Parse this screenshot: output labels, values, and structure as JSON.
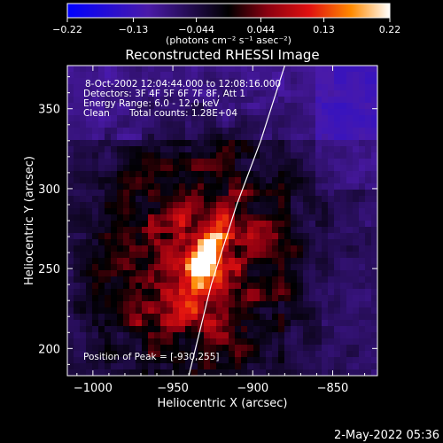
{
  "chart_data": {
    "type": "heatmap",
    "title": "Reconstructed RHESSI Image",
    "xlabel": "Heliocentric X (arcsec)",
    "ylabel": "Heliocentric Y (arcsec)",
    "xlim": [
      -1016,
      -822
    ],
    "ylim": [
      183,
      377
    ],
    "xticks": [
      -1000,
      -950,
      -900,
      -850
    ],
    "yticks": [
      200,
      250,
      300,
      350
    ],
    "xtick_labels": [
      "−1000",
      "−950",
      "−900",
      "−850"
    ],
    "ytick_labels": [
      "200",
      "250",
      "300",
      "350"
    ],
    "colorbar": {
      "min": -0.22,
      "max": 0.22,
      "ticks": [
        -0.22,
        -0.13,
        -0.044,
        0.044,
        0.13,
        0.22
      ],
      "tick_labels": [
        "−0.22",
        "−0.13",
        "−0.044",
        "0.044",
        "0.13",
        "0.22"
      ],
      "unit_label": "(photons cm⁻² s⁻¹ asec⁻²)",
      "placement": "top"
    },
    "annotations": {
      "time_range": "8-Oct-2002 12:04:44.000 to 12:08:16.000",
      "detectors": "Detectors: 3F 4F 5F 6F 7F 8F, Att 1",
      "energy_range": "Energy Range: 6.0 - 12.0 keV",
      "method": "Clean",
      "total_counts": "Total counts: 1.28E+04",
      "peak": "Position of Peak = [-930,255]"
    },
    "peak": {
      "x": -930,
      "y": 255,
      "value": 0.22
    },
    "limb": [
      [
        -940,
        183
      ],
      [
        -926,
        240
      ],
      [
        -910,
        290
      ],
      [
        -895,
        330
      ],
      [
        -880,
        377
      ]
    ],
    "grid": false,
    "legend": "none"
  },
  "footer": {
    "timestamp": "2-May-2022 05:36"
  }
}
